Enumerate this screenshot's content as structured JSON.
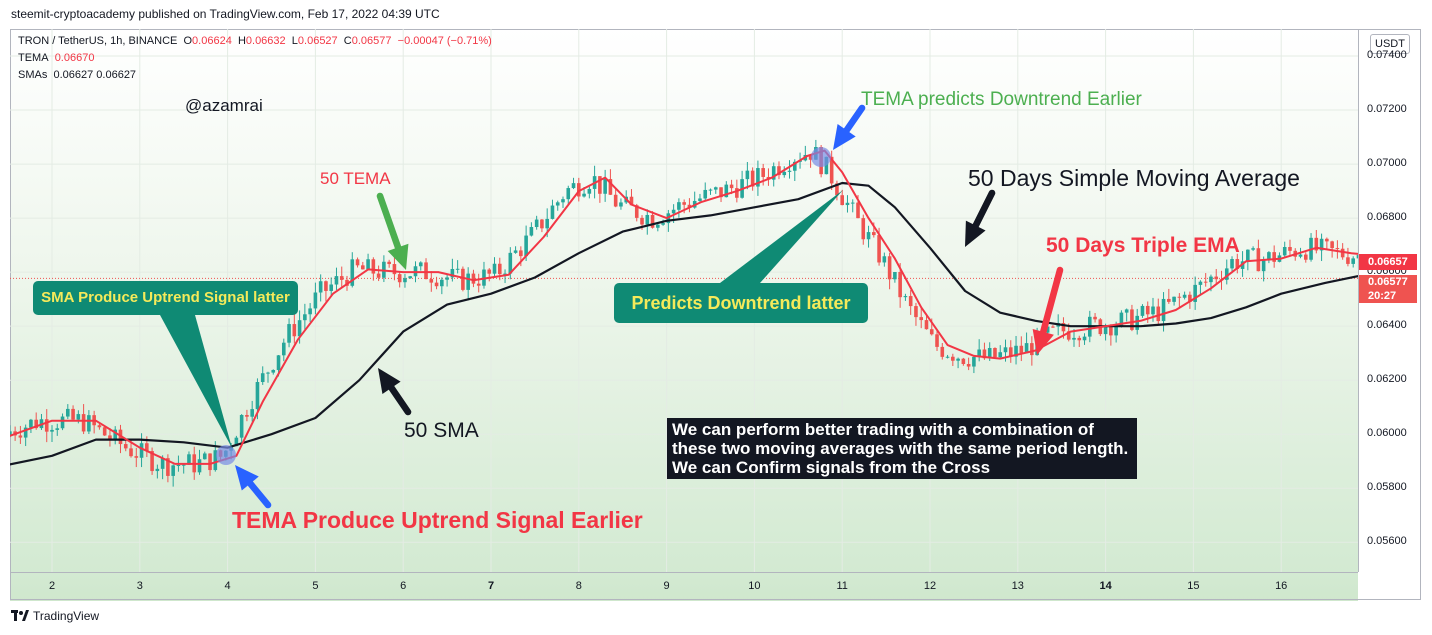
{
  "publisher_line": "steemit-cryptoacademy published on TradingView.com, Feb 17, 2022 04:39 UTC",
  "legend": {
    "symbol_line": "TRON / TetherUS, 1h, BINANCE",
    "o_label": "O",
    "o_val": "0.06624",
    "h_label": "H",
    "h_val": "0.06632",
    "l_label": "L",
    "l_val": "0.06527",
    "c_label": "C",
    "c_val": "0.06577",
    "change": "−0.00047 (−0.71%)",
    "tema_label": "TEMA",
    "tema_val": "0.06670",
    "smas_label": "SMAs",
    "smas_val": "0.06627 0.06627"
  },
  "currency_button": "USDT",
  "price_tags": {
    "tema": "0.06657",
    "last": "0.06577",
    "countdown": "20:27"
  },
  "annotations": {
    "author": "@azamrai",
    "tema_down_early": "TEMA predicts Downtrend Earlier",
    "tema_50": "50 TEMA",
    "sma_50_days": "50 Days Simple Moving Average",
    "triple_ema_50_days": "50 Days Triple EMA",
    "sma_up_late": "SMA Produce Uptrend Signal latter",
    "down_late": "Predicts Downtrend latter",
    "sma_50": "50 SMA",
    "tema_up_early": "TEMA Produce Uptrend Signal Earlier",
    "note": "We can perform better trading with a combination of these two moving averages with the same period length. We can Confirm signals from the Cross"
  },
  "footer_logo": "TradingView",
  "colors": {
    "up_candle": "#26a69a",
    "down_candle": "#ef5350",
    "tema_line": "#f23645",
    "sma_line": "#131722",
    "annotation_green": "#0f8a74",
    "arrow_blue": "#2962ff"
  },
  "chart_data": {
    "type": "line",
    "symbol": "TRON / TetherUS",
    "interval": "1h",
    "y_ticks": [
      0.056,
      0.058,
      0.06,
      0.062,
      0.064,
      0.066,
      0.068,
      0.07,
      0.072,
      0.074
    ],
    "y_tick_labels": [
      "0.05600",
      "0.05800",
      "0.06000",
      "0.06200",
      "0.06400",
      "0.06600",
      "0.06800",
      "0.07000",
      "0.07200",
      "0.07400"
    ],
    "x_tick_labels": [
      "2",
      "3",
      "4",
      "5",
      "6",
      "7",
      "8",
      "9",
      "10",
      "11",
      "12",
      "13",
      "14",
      "15",
      "16"
    ],
    "ylim": [
      0.0549,
      0.075
    ],
    "series": [
      {
        "name": "TEMA",
        "x": [
          1.4,
          2.0,
          2.5,
          3.0,
          3.4,
          3.8,
          4.1,
          4.4,
          4.8,
          5.2,
          5.6,
          6.0,
          6.4,
          6.8,
          7.2,
          7.6,
          8.0,
          8.3,
          8.6,
          9.0,
          9.4,
          9.8,
          10.2,
          10.6,
          10.8,
          11.0,
          11.3,
          11.6,
          11.9,
          12.2,
          12.5,
          12.8,
          13.2,
          13.6,
          14.0,
          14.4,
          14.8,
          15.2,
          15.6,
          16.0,
          16.4,
          16.8,
          17.1
        ],
        "values": [
          0.0598,
          0.0605,
          0.0605,
          0.0595,
          0.0589,
          0.0589,
          0.0592,
          0.0612,
          0.0635,
          0.0652,
          0.0661,
          0.066,
          0.066,
          0.0657,
          0.0659,
          0.0673,
          0.069,
          0.0695,
          0.0685,
          0.068,
          0.0686,
          0.069,
          0.0695,
          0.0703,
          0.0705,
          0.0697,
          0.068,
          0.0665,
          0.0647,
          0.0633,
          0.0629,
          0.0628,
          0.0631,
          0.0638,
          0.064,
          0.0642,
          0.0646,
          0.0654,
          0.0664,
          0.0665,
          0.0669,
          0.0667,
          0.0666
        ]
      },
      {
        "name": "SMA",
        "x": [
          1.4,
          2.0,
          2.5,
          3.0,
          3.5,
          4.0,
          4.5,
          5.0,
          5.5,
          6.0,
          6.5,
          7.0,
          7.5,
          8.0,
          8.5,
          9.0,
          9.5,
          10.0,
          10.5,
          11.0,
          11.3,
          11.6,
          12.0,
          12.4,
          12.8,
          13.2,
          13.6,
          14.0,
          14.4,
          14.8,
          15.2,
          15.6,
          16.0,
          16.5,
          17.1
        ],
        "values": [
          0.0588,
          0.0592,
          0.0598,
          0.0598,
          0.0597,
          0.0595,
          0.06,
          0.0606,
          0.062,
          0.0638,
          0.0648,
          0.0652,
          0.0658,
          0.0667,
          0.0675,
          0.0679,
          0.0681,
          0.0684,
          0.0687,
          0.0693,
          0.0692,
          0.0684,
          0.0669,
          0.0653,
          0.0645,
          0.0642,
          0.064,
          0.064,
          0.064,
          0.0641,
          0.0643,
          0.0647,
          0.0652,
          0.0656,
          0.066
        ]
      }
    ],
    "grid": true,
    "legend_position": "top-left"
  }
}
